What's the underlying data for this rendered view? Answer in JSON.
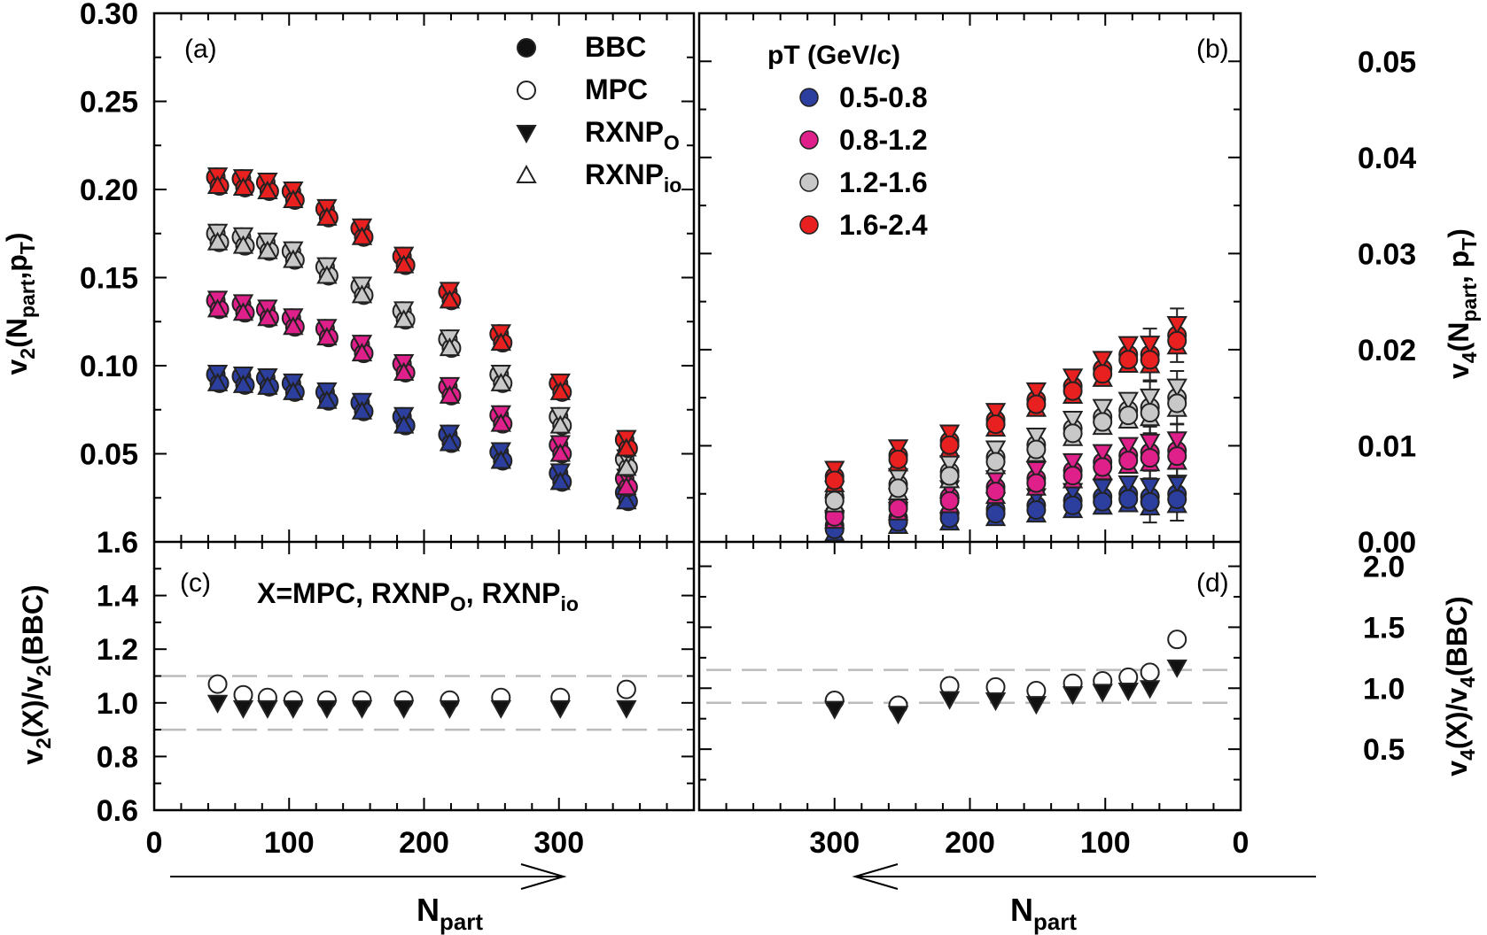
{
  "chart_data": [
    {
      "panel": "(a)",
      "type": "scatter",
      "ylabel": "v2(Npart,pT)",
      "ylabel_main": "v",
      "ylabel_sub": "2",
      "ylabel_rest": "(N",
      "ylabel_sub2": "part",
      "ylabel_rest2": ",p",
      "ylabel_sub3": "T",
      "ylabel_close": ")",
      "ylim": [
        0.0,
        0.3
      ],
      "yticks": [
        "0.05",
        "0.10",
        "0.15",
        "0.20",
        "0.25",
        "0.30"
      ],
      "legend": [
        {
          "marker": "filled-circle",
          "label": "BBC"
        },
        {
          "marker": "open-circle",
          "label": "MPC"
        },
        {
          "marker": "filled-down-triangle",
          "label": "RXNP",
          "sub": "O"
        },
        {
          "marker": "open-up-triangle",
          "label": "RXNP",
          "sub": "io"
        }
      ],
      "legend_placement": "top-center",
      "x": [
        47,
        66,
        84,
        103,
        128,
        154,
        185,
        219,
        257,
        301,
        350
      ],
      "series": [
        {
          "pt_bin": "0.5-0.8",
          "color": "#2c3e9e",
          "values": [
            0.092,
            0.091,
            0.09,
            0.087,
            0.082,
            0.076,
            0.068,
            0.058,
            0.048,
            0.036,
            0.025
          ]
        },
        {
          "pt_bin": "0.8-1.2",
          "color": "#e0208a",
          "values": [
            0.134,
            0.132,
            0.129,
            0.124,
            0.118,
            0.109,
            0.098,
            0.085,
            0.069,
            0.052,
            0.033
          ]
        },
        {
          "pt_bin": "1.2-1.6",
          "color": "#c8c8c8",
          "values": [
            0.172,
            0.17,
            0.167,
            0.162,
            0.153,
            0.142,
            0.128,
            0.112,
            0.092,
            0.068,
            0.044
          ]
        },
        {
          "pt_bin": "1.6-2.4",
          "color": "#e82020",
          "values": [
            0.204,
            0.203,
            0.201,
            0.196,
            0.186,
            0.175,
            0.159,
            0.139,
            0.115,
            0.087,
            0.055
          ]
        }
      ]
    },
    {
      "panel": "(b)",
      "type": "scatter",
      "ylabel": "v4(Npart, pT)",
      "ylabel_main": "v",
      "ylabel_sub": "4",
      "ylabel_rest": "(N",
      "ylabel_sub2": "part",
      "ylabel_rest2": ", p",
      "ylabel_sub3": "T",
      "ylabel_close": ")",
      "ylim": [
        0.0,
        0.055
      ],
      "yticks": [
        "0.00",
        "0.01",
        "0.02",
        "0.03",
        "0.04",
        "0.05"
      ],
      "legend_title": "pT (GeV/c)",
      "legend": [
        {
          "color": "#2c3e9e",
          "label": "0.5-0.8"
        },
        {
          "color": "#e0208a",
          "label": "0.8-1.2"
        },
        {
          "color": "#c8c8c8",
          "label": "1.2-1.6"
        },
        {
          "color": "#e82020",
          "label": "1.6-2.4"
        }
      ],
      "legend_placement": "top-left",
      "x": [
        300,
        253,
        215,
        181,
        151,
        124,
        102,
        83,
        67,
        47
      ],
      "series": [
        {
          "pt_bin": "0.5-0.8",
          "color": "#2c3e9e",
          "values": [
            0.0017,
            0.0025,
            0.0029,
            0.0034,
            0.0038,
            0.0043,
            0.0047,
            0.005,
            0.0047,
            0.005
          ]
        },
        {
          "pt_bin": "0.8-1.2",
          "color": "#e0208a",
          "values": [
            0.003,
            0.0039,
            0.0047,
            0.0057,
            0.0066,
            0.0074,
            0.0083,
            0.009,
            0.0093,
            0.0095
          ]
        },
        {
          "pt_bin": "1.2-1.6",
          "color": "#c8c8c8",
          "values": [
            0.0047,
            0.006,
            0.0073,
            0.0088,
            0.0101,
            0.0118,
            0.013,
            0.0137,
            0.014,
            0.015
          ]
        },
        {
          "pt_bin": "1.6-2.4",
          "color": "#e82020",
          "values": [
            0.0068,
            0.009,
            0.0105,
            0.0127,
            0.0148,
            0.0162,
            0.018,
            0.0195,
            0.0195,
            0.0215
          ]
        }
      ]
    },
    {
      "panel": "(c)",
      "type": "scatter",
      "ylabel": "v2(X)/v2(BBC)",
      "annotation": "X=MPC, RXNPO, RXNPio",
      "ylim": [
        0.6,
        1.6
      ],
      "yticks": [
        "0.6",
        "0.8",
        "1.0",
        "1.2",
        "1.4",
        "1.6"
      ],
      "xlabel": "Npart",
      "xlim": [
        0,
        400
      ],
      "xticks": [
        "0",
        "100",
        "200",
        "300"
      ],
      "reference_lines": [
        0.9,
        1.1
      ],
      "x": [
        47,
        66,
        84,
        103,
        128,
        154,
        185,
        219,
        257,
        301,
        350
      ],
      "series": [
        {
          "name": "MPC",
          "marker": "open-circle",
          "values": [
            1.07,
            1.03,
            1.02,
            1.01,
            1.01,
            1.01,
            1.01,
            1.01,
            1.02,
            1.02,
            1.05
          ]
        },
        {
          "name": "RXNPO",
          "marker": "filled-down-triangle",
          "values": [
            1.0,
            0.98,
            0.98,
            0.98,
            0.98,
            0.98,
            0.98,
            0.98,
            0.98,
            0.98,
            0.98
          ]
        }
      ]
    },
    {
      "panel": "(d)",
      "type": "scatter",
      "ylabel": "v4(X)/v4(BBC)",
      "ylim": [
        0.0,
        2.2
      ],
      "yticks": [
        "0.5",
        "1.0",
        "1.5",
        "2.0"
      ],
      "xlabel": "Npart",
      "xlim": [
        400,
        0
      ],
      "xticks": [
        "300",
        "200",
        "100",
        "0"
      ],
      "reference_lines": [
        0.88,
        1.15
      ],
      "x": [
        300,
        253,
        215,
        181,
        151,
        124,
        102,
        83,
        67,
        47
      ],
      "series": [
        {
          "name": "MPC",
          "marker": "open-circle",
          "values": [
            0.9,
            0.86,
            1.02,
            1.01,
            0.98,
            1.04,
            1.06,
            1.09,
            1.13,
            1.4
          ]
        },
        {
          "name": "RXNPO",
          "marker": "filled-down-triangle",
          "values": [
            0.83,
            0.79,
            0.91,
            0.9,
            0.87,
            0.95,
            0.97,
            0.98,
            1.0,
            1.17
          ]
        }
      ]
    }
  ],
  "axis_labels": {
    "xlabel_main": "N",
    "xlabel_sub": "part",
    "c_ylabel_main": "v",
    "c_ylabel_sub": "2",
    "c_ylabel_rest": "(X)/v",
    "c_ylabel_sub2": "2",
    "c_ylabel_close": "(BBC)",
    "d_ylabel_main": "v",
    "d_ylabel_sub": "4",
    "d_ylabel_rest": "(X)/v",
    "d_ylabel_sub2": "4",
    "d_ylabel_close": "(BBC)",
    "c_annotation_prefix": "X=MPC, RXNP",
    "c_annotation_sub1": "O",
    "c_annotation_mid": ", RXNP",
    "c_annotation_sub2": "io"
  }
}
